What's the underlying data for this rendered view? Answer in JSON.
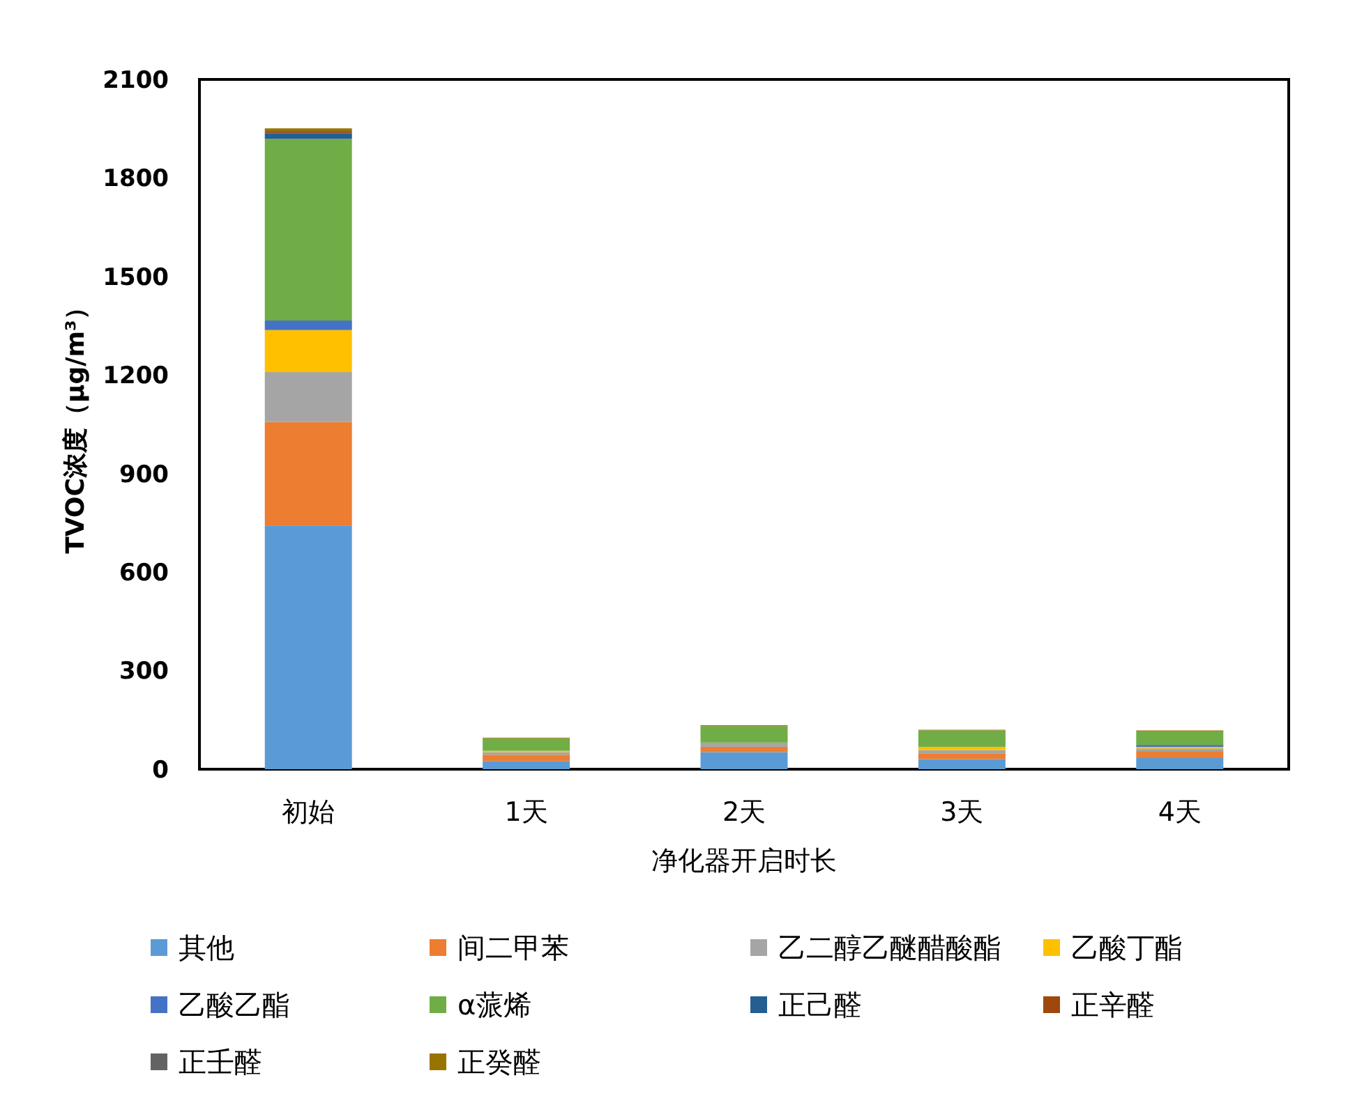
{
  "chart_data": {
    "type": "bar",
    "stacked": true,
    "xlabel": "净化器开启时长",
    "ylabel": "TVOC浓度（μg/m³）",
    "categories": [
      "初始",
      "1天",
      "2天",
      "3天",
      "4天"
    ],
    "ylim": [
      0,
      2100
    ],
    "yticks": [
      0,
      300,
      600,
      900,
      1200,
      1500,
      1800,
      2100
    ],
    "grid": false,
    "legend": "bottom",
    "series": [
      {
        "name": "其他",
        "color": "#5b9bd5",
        "values": [
          742,
          25,
          52,
          31,
          34
        ]
      },
      {
        "name": "间二甲苯",
        "color": "#ed7d31",
        "values": [
          315,
          19,
          16,
          16,
          21
        ]
      },
      {
        "name": "乙二醇乙醚醋酸酯",
        "color": "#a5a5a5",
        "values": [
          152,
          8,
          13,
          11,
          8
        ]
      },
      {
        "name": "乙酸丁酯",
        "color": "#ffc000",
        "values": [
          128,
          4,
          0,
          10,
          5
        ]
      },
      {
        "name": "乙酸乙酯",
        "color": "#4472c4",
        "values": [
          29,
          0,
          0,
          0,
          6
        ]
      },
      {
        "name": "α蒎烯",
        "color": "#70ad47",
        "values": [
          553,
          38,
          50,
          50,
          41
        ]
      },
      {
        "name": "正己醛",
        "color": "#255e91",
        "values": [
          17,
          0,
          0,
          0,
          0
        ]
      },
      {
        "name": "正辛醛",
        "color": "#9e480e",
        "values": [
          3,
          0,
          0,
          0,
          0
        ]
      },
      {
        "name": "正壬醛",
        "color": "#636363",
        "values": [
          4,
          0,
          0,
          0,
          0
        ]
      },
      {
        "name": "正癸醛",
        "color": "#997300",
        "values": [
          8,
          2,
          3,
          2,
          3
        ]
      }
    ]
  }
}
